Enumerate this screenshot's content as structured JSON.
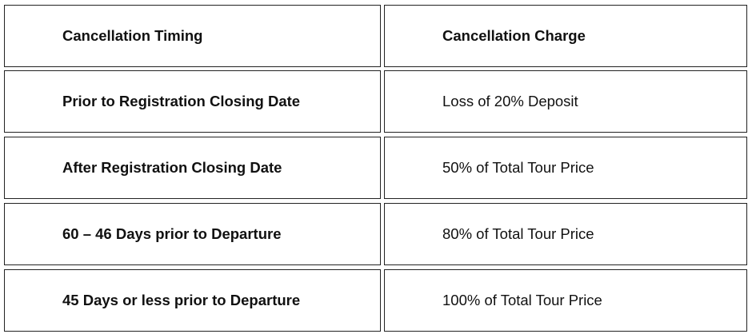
{
  "table": {
    "header": [
      "Cancellation Timing",
      "Cancellation Charge"
    ],
    "rows": [
      [
        "Prior to Registration Closing Date",
        "Loss of 20% Deposit"
      ],
      [
        "After Registration Closing Date",
        "50% of Total Tour Price"
      ],
      [
        "60 – 46 Days prior to Departure",
        "80% of Total Tour Price"
      ],
      [
        "45 Days or less prior to Departure",
        "100% of Total Tour Price"
      ]
    ]
  }
}
